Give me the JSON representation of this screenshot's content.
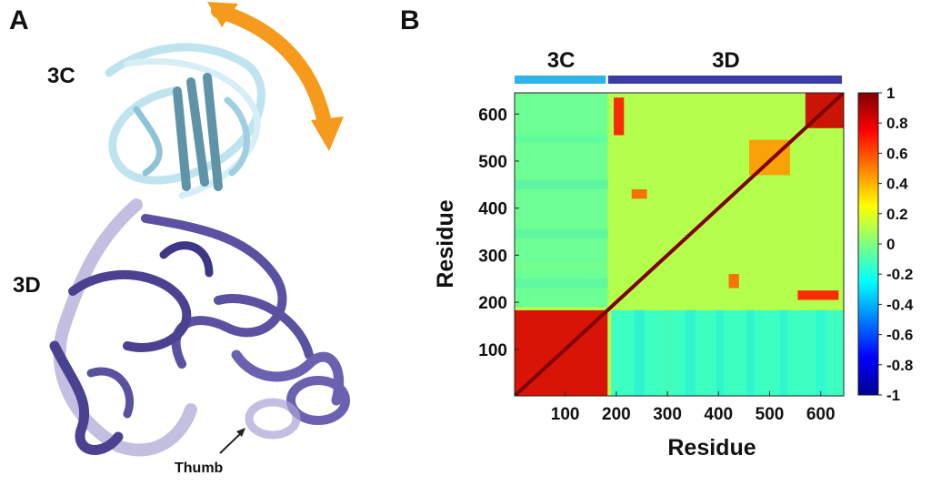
{
  "panel_a": {
    "letter": "A",
    "label_3c": "3C",
    "label_3d": "3D",
    "thumb_label": "Thumb",
    "colors": {
      "protein_3c": "#a9d8e8",
      "protein_3c_dark": "#5f93a8",
      "protein_3d": "#5a52a0",
      "protein_3d_light": "#9a94cc",
      "arrow": "#f59a1c"
    }
  },
  "panel_b": {
    "letter": "B",
    "segments": [
      {
        "label": "3C",
        "start": 1,
        "end": 183,
        "color": "#2eb3ea"
      },
      {
        "label": "3D",
        "start": 184,
        "end": 645,
        "color": "#3c3ca6"
      }
    ]
  },
  "chart_data": {
    "type": "heatmap",
    "title": "",
    "xlabel": "Residue",
    "ylabel": "Residue",
    "xlim": [
      1,
      645
    ],
    "ylim": [
      1,
      645
    ],
    "x_ticks": [
      100,
      200,
      300,
      400,
      500,
      600
    ],
    "y_ticks": [
      100,
      200,
      300,
      400,
      500,
      600
    ],
    "colorbar": {
      "range": [
        -1,
        1
      ],
      "ticks": [
        1,
        0.8,
        0.6,
        0.4,
        0.2,
        0,
        -0.2,
        -0.4,
        -0.6,
        -0.8,
        -1
      ],
      "colormap": "jet"
    },
    "diagonal_value": 1,
    "baseline_value": 0.1,
    "blocks": [
      {
        "x": [
          1,
          183
        ],
        "y": [
          1,
          183
        ],
        "value": 0.82
      },
      {
        "x": [
          190,
          645
        ],
        "y": [
          1,
          183
        ],
        "value": -0.15
      },
      {
        "x": [
          1,
          183
        ],
        "y": [
          190,
          645
        ],
        "value": -0.05
      },
      {
        "x": [
          570,
          645
        ],
        "y": [
          570,
          645
        ],
        "value": 0.85
      },
      {
        "x": [
          555,
          635
        ],
        "y": [
          205,
          225
        ],
        "value": 0.7
      },
      {
        "x": [
          195,
          215
        ],
        "y": [
          555,
          635
        ],
        "value": 0.7
      },
      {
        "x": [
          460,
          540
        ],
        "y": [
          470,
          545
        ],
        "value": 0.45
      },
      {
        "x": [
          230,
          260
        ],
        "y": [
          420,
          440
        ],
        "value": 0.55
      },
      {
        "x": [
          420,
          440
        ],
        "y": [
          230,
          260
        ],
        "value": 0.55
      }
    ],
    "row_bands": [
      {
        "y": [
          440,
          460
        ],
        "x": [
          1,
          183
        ],
        "value": -0.55
      },
      {
        "y": [
          335,
          355
        ],
        "x": [
          1,
          183
        ],
        "value": -0.5
      },
      {
        "y": [
          230,
          250
        ],
        "x": [
          1,
          183
        ],
        "value": -0.45
      },
      {
        "y": [
          540,
          555
        ],
        "x": [
          1,
          183
        ],
        "value": -0.35
      },
      {
        "y": [
          270,
          285
        ],
        "x": [
          1,
          183
        ],
        "value": 0.3
      }
    ],
    "col_bands": [
      {
        "x": [
          235,
          255
        ],
        "y": [
          1,
          183
        ],
        "value": -0.6
      },
      {
        "x": [
          335,
          355
        ],
        "y": [
          1,
          183
        ],
        "value": -0.55
      },
      {
        "x": [
          395,
          410
        ],
        "y": [
          1,
          183
        ],
        "value": -0.5
      },
      {
        "x": [
          455,
          470
        ],
        "y": [
          1,
          183
        ],
        "value": -0.5
      },
      {
        "x": [
          520,
          535
        ],
        "y": [
          1,
          183
        ],
        "value": -0.5
      },
      {
        "x": [
          290,
          310
        ],
        "y": [
          1,
          183
        ],
        "value": 0.35
      },
      {
        "x": [
          590,
          610
        ],
        "y": [
          1,
          183
        ],
        "value": -0.4
      }
    ]
  }
}
